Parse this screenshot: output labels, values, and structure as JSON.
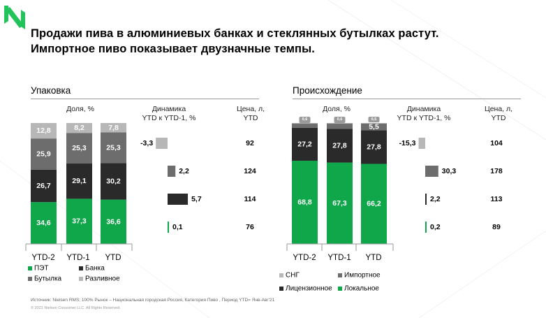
{
  "colors": {
    "accent": "#1aa34a",
    "logo": "#21c35a",
    "green": "#10a64a",
    "dark": "#2a2a2a",
    "gray": "#6d6d6d",
    "light": "#b7b7b7",
    "tiny": "#a9a9a9"
  },
  "title": {
    "line1": "Продажи пива в алюминиевых банках и стеклянных бутылках растут.",
    "line2": "Импортное пиво показывает двузначные темпы."
  },
  "panels": [
    {
      "title": "Упаковка",
      "headers": {
        "share": "Доля, %",
        "dyn1": "Динамика",
        "dyn2": "YTD к YTD-1, %",
        "price1": "Цена, л,",
        "price2": "YTD"
      }
    },
    {
      "title": "Происхождение",
      "headers": {
        "share": "Доля, %",
        "dyn1": "Динамика",
        "dyn2": "YTD к YTD-1, %",
        "price1": "Цена, л,",
        "price2": "YTD"
      }
    }
  ],
  "chart_data": [
    {
      "type": "bar",
      "stacked": true,
      "title": "Упаковка",
      "categories": [
        "YTD-2",
        "YTD-1",
        "YTD"
      ],
      "series": [
        {
          "name": "ПЭТ",
          "color": "green",
          "values": [
            "34,6",
            "37,3",
            "36,6"
          ]
        },
        {
          "name": "Банка",
          "color": "dark",
          "values": [
            "26,7",
            "29,1",
            "30,2"
          ]
        },
        {
          "name": "Бутылка",
          "color": "gray",
          "values": [
            "25,9",
            "25,3",
            "25,3"
          ]
        },
        {
          "name": "Разливное",
          "color": "light",
          "values": [
            "12,8",
            "8,2",
            "7,8"
          ]
        }
      ],
      "dynamics": {
        "label": "Динамика YTD к YTD-1, %",
        "rows": [
          {
            "value": "-3,3",
            "color": "light"
          },
          {
            "value": "2,2",
            "color": "gray"
          },
          {
            "value": "5,7",
            "color": "dark"
          },
          {
            "value": "0,1",
            "color": "green"
          }
        ]
      },
      "price": {
        "label": "Цена, л, YTD",
        "values": [
          "92",
          "124",
          "114",
          "76"
        ]
      },
      "legend": [
        {
          "label": "ПЭТ",
          "color": "green"
        },
        {
          "label": "Банка",
          "color": "dark"
        },
        {
          "label": "Бутылка",
          "color": "gray"
        },
        {
          "label": "Разливное",
          "color": "light"
        }
      ]
    },
    {
      "type": "bar",
      "stacked": true,
      "title": "Происхождение",
      "categories": [
        "YTD-2",
        "YTD-1",
        "YTD"
      ],
      "series": [
        {
          "name": "Локальное",
          "color": "green",
          "values": [
            "68,8",
            "67,3",
            "66,2"
          ]
        },
        {
          "name": "Лицензионное",
          "color": "dark",
          "values": [
            "27,2",
            "27,8",
            "27,8"
          ]
        },
        {
          "name": "Импортное",
          "color": "gray",
          "values": [
            "3,4",
            "4,3",
            "5,5"
          ]
        },
        {
          "name": "СНГ",
          "color": "tiny",
          "values": [
            "0,6",
            "0,6",
            "0,5"
          ]
        }
      ],
      "dynamics": {
        "label": "Динамика YTD к YTD-1, %",
        "rows": [
          {
            "value": "-15,3",
            "color": "light"
          },
          {
            "value": "30,3",
            "color": "gray"
          },
          {
            "value": "2,2",
            "color": "dark"
          },
          {
            "value": "0,2",
            "color": "green"
          }
        ]
      },
      "price": {
        "label": "Цена, л, YTD",
        "values": [
          "104",
          "178",
          "113",
          "89"
        ]
      },
      "legend": [
        {
          "label": "СНГ",
          "color": "light"
        },
        {
          "label": "Импортное",
          "color": "gray"
        },
        {
          "label": "Лицензионное",
          "color": "dark"
        },
        {
          "label": "Локальное",
          "color": "green"
        }
      ]
    }
  ],
  "footer": {
    "source": "Источник: Nielsen RMS; 100%   Рынок – Национальная  городская  Россия, Категория  Пиво , Период  YTD= Янв-Авг'21",
    "copyright": "© 2021 Nielsen Consumer LLC. All Rights Reserved."
  }
}
